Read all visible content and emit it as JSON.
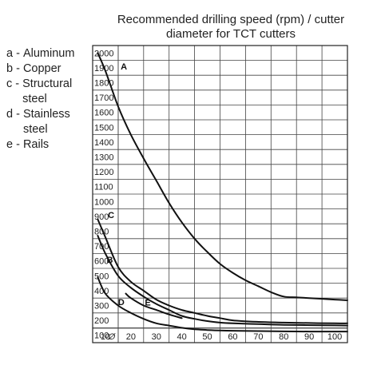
{
  "chart_data": {
    "type": "line",
    "title": "Recommended drilling speed (rpm) / cutter diameter for TCT cutters",
    "title_lines": [
      "Recommended drilling speed (rpm) / cutter",
      "diameter for TCT cutters"
    ],
    "xlabel": "",
    "ylabel": "",
    "x_origin_label": "Ø",
    "xlim": [
      5,
      105
    ],
    "ylim": [
      50,
      2050
    ],
    "x_ticks": [
      10,
      20,
      30,
      40,
      50,
      60,
      70,
      80,
      90,
      100
    ],
    "x_tick_labels": [
      "10",
      "20",
      "30",
      "40",
      "50",
      "60",
      "70",
      "80",
      "90",
      "100"
    ],
    "y_ticks": [
      100,
      200,
      300,
      400,
      500,
      600,
      700,
      800,
      900,
      1000,
      1100,
      1200,
      1300,
      1400,
      1500,
      1600,
      1700,
      1800,
      1900,
      2000
    ],
    "y_tick_labels": [
      "100",
      "200",
      "300",
      "400",
      "500",
      "600",
      "700",
      "800",
      "900",
      "1000",
      "1100",
      "1200",
      "1300",
      "1400",
      "1500",
      "1600",
      "1700",
      "1800",
      "1900",
      "2000"
    ],
    "grid": true,
    "legend": [
      {
        "key": "a - ",
        "text": "Aluminum"
      },
      {
        "key": "b - ",
        "text": "Copper"
      },
      {
        "key": "c - ",
        "text": "Structural steel"
      },
      {
        "key": "d - ",
        "text": "Stainless steel"
      },
      {
        "key": "e - ",
        "text": "Rails"
      }
    ],
    "series": [
      {
        "name": "A",
        "label_at": [
          16,
          1910
        ],
        "color": "#111111",
        "x": [
          7,
          10,
          15,
          20,
          25,
          30,
          35,
          40,
          45,
          50,
          55,
          60,
          65,
          70,
          75,
          80,
          85,
          90,
          95,
          100,
          105
        ],
        "y": [
          2000,
          1880,
          1640,
          1450,
          1290,
          1140,
          990,
          860,
          750,
          660,
          580,
          520,
          470,
          430,
          390,
          360,
          355,
          350,
          345,
          340,
          335
        ]
      },
      {
        "name": "B",
        "label_at": [
          10.5,
          610
        ],
        "color": "#111111",
        "x": [
          7,
          10,
          15,
          20,
          25,
          30,
          35,
          40,
          45,
          50,
          55,
          60,
          70,
          80,
          90,
          100,
          105
        ],
        "y": [
          770,
          650,
          500,
          420,
          360,
          310,
          270,
          230,
          210,
          195,
          185,
          180,
          175,
          170,
          168,
          166,
          165
        ]
      },
      {
        "name": "C",
        "label_at": [
          11,
          910
        ],
        "color": "#111111",
        "x": [
          7,
          10,
          15,
          20,
          25,
          30,
          35,
          40,
          45,
          50,
          55,
          60,
          70,
          80,
          90,
          100,
          105
        ],
        "y": [
          880,
          760,
          560,
          460,
          400,
          340,
          300,
          270,
          250,
          230,
          215,
          200,
          190,
          185,
          182,
          180,
          180
        ]
      },
      {
        "name": "D",
        "label_at": [
          15,
          325
        ],
        "color": "#111111",
        "x": [
          7,
          10,
          15,
          20,
          25,
          30,
          35,
          40,
          45,
          50,
          55,
          60,
          70,
          80,
          90,
          100,
          105
        ],
        "y": [
          490,
          380,
          300,
          250,
          210,
          180,
          165,
          150,
          140,
          135,
          132,
          130,
          128,
          126,
          125,
          125,
          125
        ]
      },
      {
        "name": "E",
        "label_at": [
          25.5,
          322
        ],
        "color": "#111111",
        "x": [
          18,
          20,
          25,
          30,
          35,
          40
        ],
        "y": [
          380,
          350,
          300,
          270,
          240,
          215
        ]
      }
    ]
  }
}
